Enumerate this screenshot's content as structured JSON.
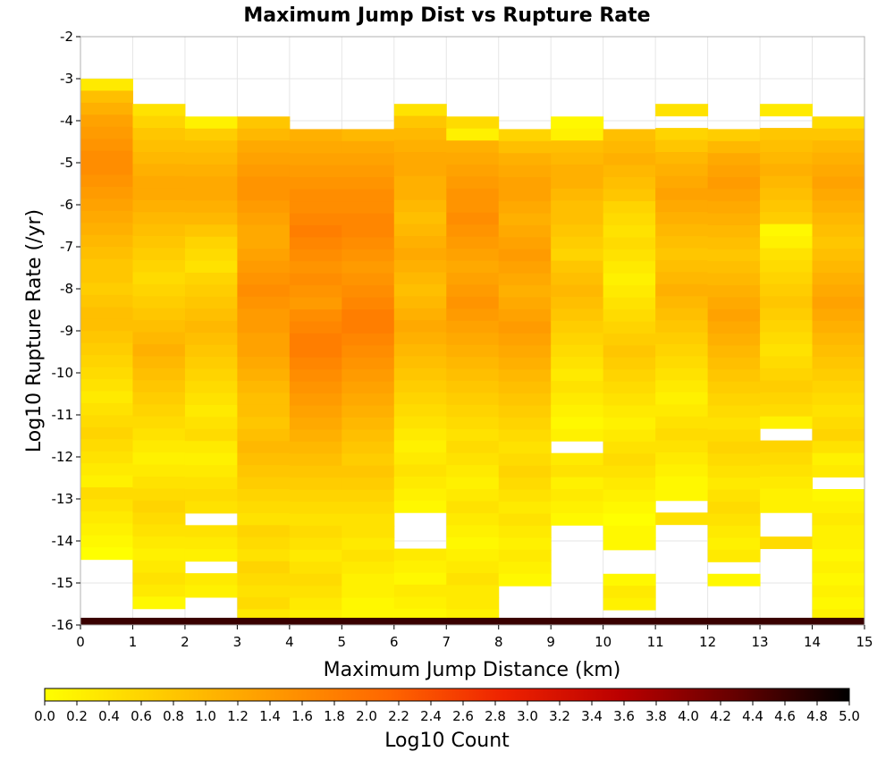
{
  "chart_data": {
    "type": "heatmap",
    "title": "Maximum Jump Dist vs Rupture Rate",
    "xlabel": "Maximum Jump Distance (km)",
    "ylabel": "Log10 Rupture Rate (/yr)",
    "xlim": [
      0,
      15
    ],
    "ylim": [
      -16,
      -2
    ],
    "x_ticks": [
      "0",
      "1",
      "2",
      "3",
      "4",
      "5",
      "6",
      "7",
      "8",
      "9",
      "10",
      "11",
      "12",
      "13",
      "14",
      "15"
    ],
    "y_ticks": [
      "-2",
      "-3",
      "-4",
      "-5",
      "-6",
      "-7",
      "-8",
      "-9",
      "-10",
      "-11",
      "-12",
      "-13",
      "-14",
      "-15",
      "-16"
    ],
    "x_bin_width": 1,
    "y_bin_width": 0.286,
    "grid": true,
    "colorbar": {
      "label": "Log10 Count",
      "range": [
        0,
        5
      ],
      "ticks": [
        "0.0",
        "0.2",
        "0.4",
        "0.6",
        "0.8",
        "1.0",
        "1.2",
        "1.4",
        "1.6",
        "1.8",
        "2.0",
        "2.2",
        "2.4",
        "2.6",
        "2.8",
        "3.0",
        "3.2",
        "3.4",
        "3.6",
        "3.8",
        "4.0",
        "4.2",
        "4.4",
        "4.6",
        "4.8",
        "5.0"
      ],
      "colors": [
        "#ffff00",
        "#ffcc00",
        "#ff9900",
        "#ff6600",
        "#ee2200",
        "#bb0000",
        "#660000",
        "#000000"
      ],
      "placement": "bottom"
    },
    "columns": [
      {
        "x": 0,
        "start": -3.0,
        "values": [
          0.3,
          0.9,
          1.1,
          1.3,
          1.4,
          1.5,
          1.6,
          1.6,
          1.5,
          1.4,
          1.3,
          1.2,
          1.1,
          1.0,
          0.9,
          0.8,
          0.8,
          0.7,
          0.8,
          0.9,
          0.9,
          0.8,
          0.7,
          0.6,
          0.5,
          0.4,
          0.3,
          0.4,
          0.5,
          0.6,
          0.5,
          0.4,
          0.3,
          0.2,
          0.5,
          0.4,
          0.3,
          0.2,
          0.1,
          0.0,
          -1,
          -1,
          -1,
          -1,
          -1,
          -1,
          4.6
        ]
      },
      {
        "x": 1,
        "start": -3.6,
        "values": [
          0.4,
          0.6,
          0.8,
          0.9,
          1.0,
          1.1,
          1.2,
          1.2,
          1.1,
          1.0,
          0.9,
          0.8,
          0.7,
          0.6,
          0.5,
          0.6,
          0.7,
          0.8,
          0.9,
          1.0,
          1.1,
          1.0,
          0.9,
          0.8,
          0.7,
          0.6,
          0.5,
          0.4,
          0.3,
          0.2,
          0.3,
          0.4,
          0.5,
          0.6,
          0.5,
          0.4,
          0.3,
          0.2,
          0.3,
          0.4,
          0.3,
          0.1,
          -1,
          -1,
          4.6
        ]
      },
      {
        "x": 2,
        "start": -3.9,
        "values": [
          0.2,
          0.7,
          0.9,
          1.0,
          1.1,
          1.2,
          1.2,
          1.1,
          1.0,
          0.8,
          0.6,
          0.5,
          0.4,
          0.6,
          0.7,
          0.8,
          0.9,
          1.0,
          0.9,
          0.8,
          0.7,
          0.6,
          0.5,
          0.4,
          0.3,
          0.4,
          0.5,
          0.3,
          0.2,
          0.3,
          0.4,
          0.5,
          0.4,
          -1,
          0.4,
          0.3,
          0.2,
          -1,
          0.3,
          0.2,
          -1,
          -1,
          -1,
          4.6
        ]
      },
      {
        "x": 3,
        "start": -3.9,
        "values": [
          0.8,
          1.0,
          1.2,
          1.3,
          1.4,
          1.5,
          1.5,
          1.4,
          1.3,
          1.2,
          1.2,
          1.3,
          1.4,
          1.5,
          1.6,
          1.5,
          1.4,
          1.4,
          1.3,
          1.3,
          1.2,
          1.1,
          1.0,
          0.9,
          0.9,
          0.8,
          0.9,
          1.0,
          0.9,
          0.8,
          0.7,
          0.6,
          0.5,
          0.4,
          0.6,
          0.5,
          0.4,
          0.6,
          0.5,
          0.4,
          0.5,
          0.3,
          0.2,
          4.6
        ]
      },
      {
        "x": 4,
        "start": -4.2,
        "values": [
          1.1,
          1.2,
          1.3,
          1.4,
          1.5,
          1.6,
          1.6,
          1.7,
          1.8,
          1.7,
          1.6,
          1.5,
          1.6,
          1.5,
          1.4,
          1.6,
          1.7,
          1.8,
          1.8,
          1.7,
          1.6,
          1.5,
          1.4,
          1.3,
          1.2,
          1.1,
          1.0,
          0.9,
          0.8,
          0.7,
          0.6,
          0.5,
          0.4,
          0.5,
          0.4,
          0.3,
          0.4,
          0.5,
          0.4,
          0.3,
          0.2,
          0.2,
          4.6
        ]
      },
      {
        "x": 5,
        "start": -4.2,
        "values": [
          1.0,
          1.2,
          1.3,
          1.4,
          1.5,
          1.6,
          1.6,
          1.7,
          1.7,
          1.6,
          1.5,
          1.4,
          1.5,
          1.6,
          1.7,
          1.8,
          1.8,
          1.7,
          1.6,
          1.5,
          1.4,
          1.3,
          1.2,
          1.1,
          1.0,
          0.9,
          0.8,
          0.7,
          0.8,
          0.7,
          0.6,
          0.5,
          0.4,
          0.4,
          0.3,
          0.4,
          0.3,
          0.2,
          0.2,
          0.1,
          0.1,
          0.2,
          4.6
        ]
      },
      {
        "x": 6,
        "start": -3.6,
        "values": [
          0.4,
          0.8,
          1.0,
          1.1,
          1.2,
          1.2,
          1.1,
          1.1,
          1.0,
          0.9,
          1.0,
          1.1,
          1.2,
          1.1,
          1.0,
          0.9,
          1.0,
          1.1,
          1.2,
          1.1,
          1.0,
          0.9,
          0.8,
          0.7,
          0.6,
          0.5,
          0.4,
          0.3,
          0.2,
          0.3,
          0.4,
          0.3,
          0.2,
          0.1,
          -1,
          -1,
          -1,
          0.3,
          0.2,
          0.1,
          0.3,
          0.2,
          0.1,
          -1,
          4.6
        ]
      },
      {
        "x": 7,
        "start": -3.9,
        "values": [
          0.5,
          0.2,
          1.1,
          1.2,
          1.3,
          1.4,
          1.5,
          1.5,
          1.6,
          1.5,
          1.4,
          1.3,
          1.2,
          1.3,
          1.4,
          1.5,
          1.4,
          1.3,
          1.2,
          1.1,
          1.0,
          0.9,
          0.8,
          0.7,
          0.6,
          0.5,
          0.4,
          0.5,
          0.4,
          0.3,
          0.2,
          0.3,
          0.4,
          0.3,
          0.2,
          0.1,
          0.2,
          0.3,
          0.4,
          0.3,
          0.3,
          0.2,
          0.1,
          4.6
        ]
      },
      {
        "x": 8,
        "start": -4.2,
        "values": [
          0.6,
          0.9,
          1.1,
          1.2,
          1.3,
          1.3,
          1.2,
          1.1,
          1.2,
          1.3,
          1.4,
          1.3,
          1.2,
          1.1,
          1.2,
          1.3,
          1.4,
          1.3,
          1.2,
          1.1,
          1.0,
          0.9,
          0.8,
          0.7,
          0.6,
          0.5,
          0.4,
          0.5,
          0.6,
          0.5,
          0.4,
          0.3,
          0.4,
          0.3,
          0.2,
          0.3,
          0.2,
          0.1,
          -1,
          -1,
          -1,
          -1,
          4.6
        ]
      },
      {
        "x": 9,
        "start": -3.9,
        "values": [
          0.1,
          0.2,
          0.9,
          1.0,
          1.1,
          1.1,
          1.0,
          0.9,
          0.9,
          0.8,
          0.7,
          0.6,
          0.8,
          0.9,
          1.0,
          0.9,
          0.8,
          0.7,
          0.6,
          0.5,
          0.4,
          0.3,
          0.4,
          0.3,
          0.2,
          0.1,
          0.2,
          -1,
          0.3,
          0.4,
          0.2,
          0.3,
          0.2,
          0.1,
          -1,
          -1,
          -1,
          -1,
          -1,
          -1,
          -1,
          -1,
          4.6
        ]
      },
      {
        "x": 10,
        "start": -4.2,
        "values": [
          0.9,
          1.0,
          1.1,
          1.0,
          0.9,
          0.8,
          0.6,
          0.5,
          0.4,
          0.5,
          0.4,
          0.3,
          0.2,
          0.3,
          0.4,
          0.5,
          0.6,
          0.7,
          0.8,
          0.7,
          0.6,
          0.5,
          0.4,
          0.3,
          0.2,
          0.3,
          0.4,
          0.5,
          0.4,
          0.3,
          0.2,
          0.1,
          0.0,
          0.1,
          0.1,
          -1,
          -1,
          0.1,
          0.3,
          0.2,
          4.6
        ]
      },
      {
        "x": 11,
        "start": -3.6,
        "values": [
          0.4,
          -1,
          0.6,
          0.8,
          1.0,
          1.1,
          1.2,
          1.3,
          1.2,
          1.1,
          1.0,
          0.9,
          0.8,
          0.9,
          1.0,
          1.1,
          1.0,
          0.9,
          0.8,
          0.7,
          0.6,
          0.5,
          0.4,
          0.3,
          0.2,
          0.3,
          0.4,
          0.5,
          0.4,
          0.3,
          0.2,
          0.1,
          0.1,
          -1,
          0.4,
          -1,
          -1,
          -1,
          -1,
          -1,
          -1,
          -1,
          4.6
        ]
      },
      {
        "x": 12,
        "start": -4.2,
        "values": [
          0.7,
          1.0,
          1.2,
          1.3,
          1.4,
          1.3,
          1.2,
          1.1,
          1.0,
          0.9,
          0.8,
          0.9,
          1.0,
          1.1,
          1.2,
          1.3,
          1.2,
          1.1,
          1.0,
          0.9,
          0.8,
          0.7,
          0.6,
          0.5,
          0.4,
          0.5,
          0.6,
          0.5,
          0.4,
          0.3,
          0.4,
          0.5,
          0.4,
          0.3,
          0.2,
          0.3,
          -1,
          0.1,
          -1,
          -1,
          4.6
        ]
      },
      {
        "x": 13,
        "start": -3.6,
        "values": [
          0.3,
          -1,
          0.8,
          0.9,
          1.0,
          1.1,
          1.0,
          0.9,
          0.8,
          0.7,
          0.1,
          0.2,
          0.4,
          0.5,
          0.6,
          0.7,
          0.8,
          0.7,
          0.6,
          0.5,
          0.4,
          0.5,
          0.6,
          0.7,
          0.6,
          0.5,
          0.2,
          -1,
          0.6,
          0.5,
          0.4,
          0.3,
          0.2,
          0.2,
          -1,
          -1,
          0.5,
          -1,
          -1,
          4.6
        ]
      },
      {
        "x": 14,
        "start": -3.9,
        "values": [
          0.5,
          0.8,
          1.0,
          1.1,
          1.2,
          1.3,
          1.2,
          1.1,
          1.0,
          0.9,
          0.8,
          0.9,
          1.0,
          1.1,
          1.2,
          1.3,
          1.2,
          1.1,
          1.0,
          0.9,
          0.8,
          0.7,
          0.6,
          0.5,
          0.4,
          0.5,
          0.6,
          0.4,
          0.2,
          0.3,
          -1,
          0.1,
          0.2,
          0.3,
          0.2,
          0.2,
          0.1,
          0.2,
          0.1,
          0.2,
          0.1,
          0.2,
          4.6
        ]
      }
    ]
  }
}
